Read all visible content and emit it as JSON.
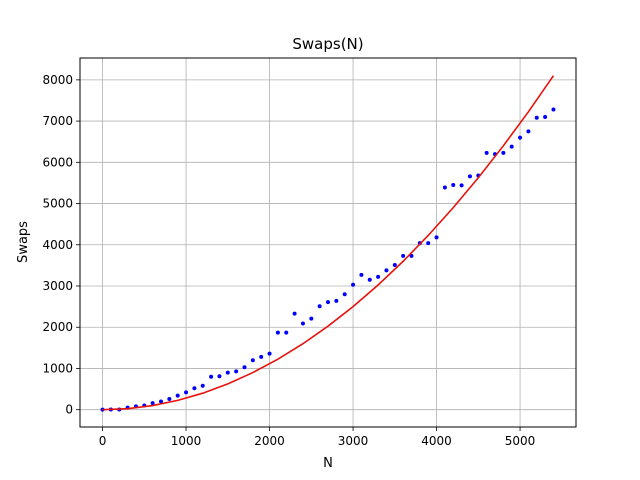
{
  "chart_data": {
    "type": "scatter",
    "title": "Swaps(N)",
    "xlabel": "N",
    "ylabel": "Swaps",
    "xlim": [
      -270,
      5670
    ],
    "ylim": [
      -420,
      8530
    ],
    "xticks": [
      0,
      1000,
      2000,
      3000,
      4000,
      5000
    ],
    "yticks": [
      0,
      1000,
      2000,
      3000,
      4000,
      5000,
      6000,
      7000,
      8000
    ],
    "grid": true,
    "series": [
      {
        "kind": "points",
        "color": "#0000ff",
        "x": [
          0,
          100,
          200,
          300,
          400,
          500,
          600,
          700,
          800,
          900,
          1000,
          1100,
          1200,
          1300,
          1400,
          1500,
          1600,
          1700,
          1800,
          1900,
          2000,
          2100,
          2200,
          2300,
          2400,
          2500,
          2600,
          2700,
          2800,
          2900,
          3000,
          3100,
          3200,
          3300,
          3400,
          3500,
          3600,
          3700,
          3800,
          3900,
          4000,
          4100,
          4200,
          4300,
          4400,
          4500,
          4600,
          4700,
          4800,
          4900,
          5000,
          5100,
          5200,
          5300,
          5400
        ],
        "y": [
          0,
          5,
          5,
          50,
          80,
          100,
          160,
          200,
          260,
          340,
          420,
          520,
          580,
          800,
          810,
          900,
          930,
          1030,
          1200,
          1280,
          1360,
          1870,
          1870,
          2330,
          2090,
          2210,
          2510,
          2610,
          2640,
          2800,
          3030,
          3270,
          3150,
          3220,
          3380,
          3510,
          3730,
          3730,
          4040,
          4040,
          4180,
          5390,
          5450,
          5440,
          5660,
          5680,
          6230,
          6200,
          6230,
          6380,
          6600,
          6750,
          7080,
          7100,
          7280
        ]
      },
      {
        "kind": "line",
        "color": "#e8120c",
        "x": [
          0,
          300,
          600,
          900,
          1200,
          1500,
          1800,
          2100,
          2400,
          2700,
          3000,
          3300,
          3600,
          3900,
          4200,
          4500,
          4800,
          5100,
          5400
        ],
        "y": [
          0,
          25,
          100,
          225,
          400,
          625,
          900,
          1225,
          1600,
          2025,
          2500,
          3025,
          3600,
          4225,
          4900,
          5625,
          6400,
          7225,
          8100
        ]
      }
    ]
  }
}
